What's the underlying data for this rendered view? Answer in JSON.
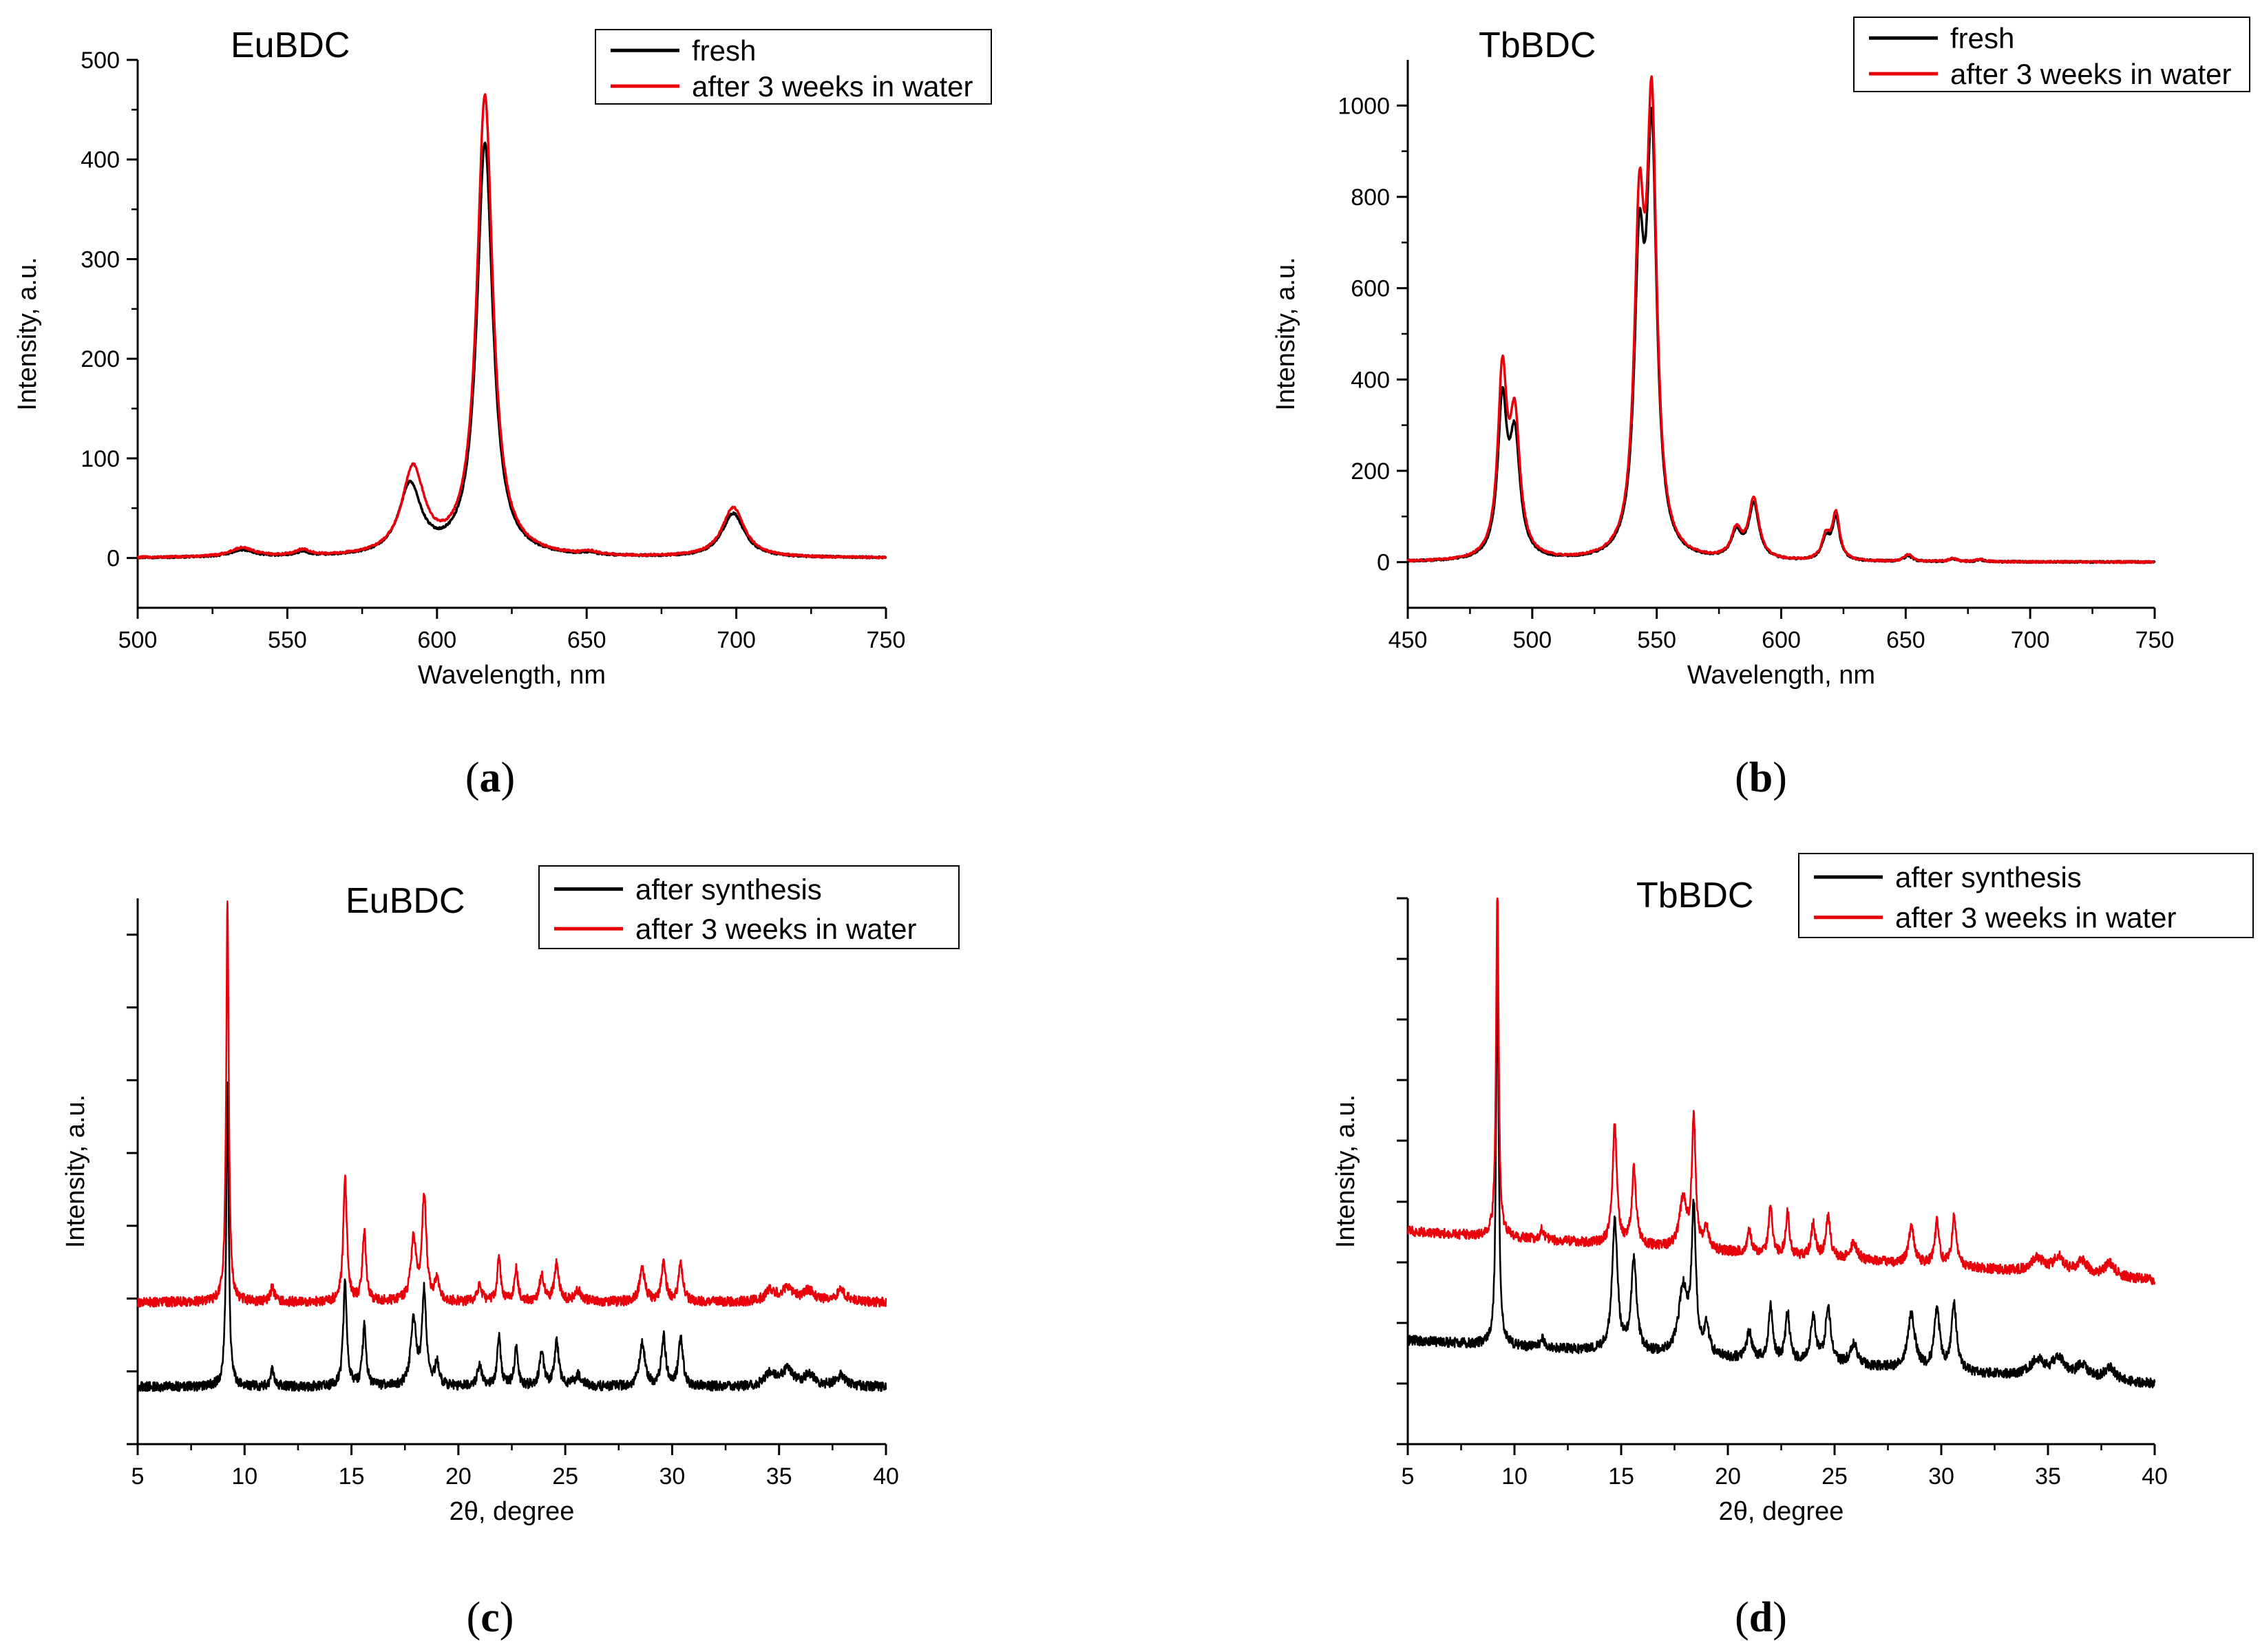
{
  "colors": {
    "black_series": "#000000",
    "red_series": "#e8000b",
    "axis": "#000000",
    "legend_border": "#000000"
  },
  "chart_data": [
    {
      "id": "a",
      "type": "line",
      "letter": "a",
      "title": "EuBDC",
      "xlabel": "Wavelength, nm",
      "ylabel": "Intensity, a.u.",
      "xlim": [
        500,
        750
      ],
      "ylim": [
        -50,
        500
      ],
      "x_ticks": [
        500,
        550,
        600,
        650,
        700,
        750
      ],
      "x_tick_labels": [
        "500",
        "550",
        "600",
        "650",
        "700",
        "750"
      ],
      "y_ticks": [
        0,
        100,
        200,
        300,
        400,
        500
      ],
      "y_tick_labels": [
        "0",
        "100",
        "200",
        "300",
        "400",
        "500"
      ],
      "legend_position": "top-right",
      "series": [
        {
          "name": "fresh",
          "color": "#000000",
          "baseline": 0,
          "noise": 1,
          "peaks": [
            [
              535,
              7,
              5
            ],
            [
              555,
              4,
              3
            ],
            [
              591,
              70,
              4.5
            ],
            [
              616,
              415,
              3.2
            ],
            [
              651,
              2,
              3
            ],
            [
              699,
              44,
              4.5
            ]
          ]
        },
        {
          "name": "after 3 weeks in water",
          "color": "#e8000b",
          "baseline": 0,
          "noise": 1,
          "peaks": [
            [
              535,
              9,
              5
            ],
            [
              555,
              6,
              3
            ],
            [
              592,
              86,
              4.5
            ],
            [
              616,
              462,
              3.2
            ],
            [
              651,
              3,
              3
            ],
            [
              699,
              50,
              4.5
            ]
          ]
        }
      ]
    },
    {
      "id": "b",
      "type": "line",
      "letter": "b",
      "title": "TbBDC",
      "xlabel": "Wavelength, nm",
      "ylabel": "Intensity, a.u.",
      "xlim": [
        450,
        750
      ],
      "ylim": [
        -100,
        1100
      ],
      "x_ticks": [
        450,
        500,
        550,
        600,
        650,
        700,
        750
      ],
      "x_tick_labels": [
        "450",
        "500",
        "550",
        "600",
        "650",
        "700",
        "750"
      ],
      "y_ticks": [
        0,
        200,
        400,
        600,
        800,
        1000
      ],
      "y_tick_labels": [
        "0",
        "200",
        "400",
        "600",
        "800",
        "1000"
      ],
      "legend_position": "top-right",
      "series": [
        {
          "name": "fresh",
          "color": "#000000",
          "baseline": 0,
          "noise": 2,
          "peaks": [
            [
              488,
              330,
              2.2
            ],
            [
              493,
              250,
              2.5
            ],
            [
              543,
              600,
              2.4
            ],
            [
              548,
              880,
              2.4
            ],
            [
              582,
              55,
              2.5
            ],
            [
              589,
              120,
              2.5
            ],
            [
              618,
              45,
              2
            ],
            [
              622,
              90,
              1.8
            ],
            [
              651,
              12,
              2
            ],
            [
              669,
              6,
              2
            ],
            [
              680,
              4,
              2
            ]
          ]
        },
        {
          "name": "after 3 weeks in water",
          "color": "#e8000b",
          "baseline": 0,
          "noise": 2,
          "peaks": [
            [
              488,
              390,
              2.2
            ],
            [
              493,
              290,
              2.5
            ],
            [
              543,
              680,
              2.4
            ],
            [
              548,
              930,
              2.4
            ],
            [
              582,
              60,
              2.5
            ],
            [
              589,
              130,
              2.5
            ],
            [
              618,
              50,
              2
            ],
            [
              622,
              100,
              1.8
            ],
            [
              651,
              15,
              2
            ],
            [
              669,
              7,
              2
            ],
            [
              680,
              5,
              2
            ]
          ]
        }
      ]
    },
    {
      "id": "c",
      "type": "line",
      "letter": "c",
      "title": "EuBDC",
      "xlabel": "2θ, degree",
      "ylabel": "Intensity, a.u.",
      "xlim": [
        5,
        40
      ],
      "ylim": [
        0,
        100
      ],
      "x_ticks": [
        5,
        10,
        15,
        20,
        25,
        30,
        35,
        40
      ],
      "x_tick_labels": [
        "5",
        "10",
        "15",
        "20",
        "25",
        "30",
        "35",
        "40"
      ],
      "y_ticks": [
        0,
        13.33,
        26.67,
        40,
        53.33,
        66.67,
        80,
        93.33
      ],
      "y_tick_labels": [
        "",
        "",
        "",
        "",
        "",
        "",
        "",
        ""
      ],
      "legend_position": "top-right",
      "series": [
        {
          "name": "after synthesis",
          "color": "#000000",
          "baseline": 10.5,
          "noise": 0.9,
          "peaks": [
            [
              9.2,
              55,
              0.07
            ],
            [
              11.3,
              3,
              0.1
            ],
            [
              14.7,
              19,
              0.1
            ],
            [
              15.6,
              11,
              0.1
            ],
            [
              17.9,
              12,
              0.15
            ],
            [
              18.4,
              17,
              0.12
            ],
            [
              19.0,
              4,
              0.12
            ],
            [
              21.0,
              4,
              0.12
            ],
            [
              21.9,
              9,
              0.1
            ],
            [
              22.7,
              7,
              0.1
            ],
            [
              23.9,
              6,
              0.12
            ],
            [
              24.6,
              8,
              0.12
            ],
            [
              25.6,
              2,
              0.2
            ],
            [
              28.6,
              8,
              0.15
            ],
            [
              29.6,
              9,
              0.12
            ],
            [
              30.4,
              9,
              0.12
            ],
            [
              34.6,
              2.5,
              0.3
            ],
            [
              35.4,
              3,
              0.3
            ],
            [
              36.4,
              2,
              0.3
            ],
            [
              37.9,
              2,
              0.3
            ]
          ]
        },
        {
          "name": "after 3 weeks in water",
          "color": "#e8000b",
          "baseline": 26,
          "noise": 0.9,
          "peaks": [
            [
              9.2,
              74,
              0.07
            ],
            [
              11.3,
              3,
              0.1
            ],
            [
              14.7,
              23,
              0.1
            ],
            [
              15.6,
              13,
              0.1
            ],
            [
              17.9,
              11,
              0.15
            ],
            [
              18.4,
              19,
              0.12
            ],
            [
              19.0,
              4,
              0.12
            ],
            [
              21.0,
              3,
              0.12
            ],
            [
              21.9,
              8,
              0.1
            ],
            [
              22.7,
              6,
              0.1
            ],
            [
              23.9,
              5,
              0.12
            ],
            [
              24.6,
              7,
              0.12
            ],
            [
              25.6,
              2,
              0.2
            ],
            [
              28.6,
              6,
              0.15
            ],
            [
              29.6,
              7,
              0.12
            ],
            [
              30.4,
              7,
              0.12
            ],
            [
              34.6,
              2,
              0.3
            ],
            [
              35.4,
              2.5,
              0.3
            ],
            [
              36.4,
              2,
              0.3
            ],
            [
              37.9,
              2,
              0.3
            ]
          ]
        }
      ]
    },
    {
      "id": "d",
      "type": "line",
      "letter": "d",
      "title": "TbBDC",
      "xlabel": "2θ, degree",
      "ylabel": "Intensity, a.u.",
      "xlim": [
        5,
        40
      ],
      "ylim": [
        0,
        100
      ],
      "x_ticks": [
        5,
        10,
        15,
        20,
        25,
        30,
        35,
        40
      ],
      "x_tick_labels": [
        "5",
        "10",
        "15",
        "20",
        "25",
        "30",
        "35",
        "40"
      ],
      "y_ticks": [
        0,
        11.1,
        22.2,
        33.3,
        44.4,
        55.6,
        66.7,
        77.8,
        88.9,
        100
      ],
      "y_tick_labels": [
        "",
        "",
        "",
        "",
        "",
        "",
        "",
        "",
        "",
        ""
      ],
      "legend_position": "top-right",
      "series": [
        {
          "name": "after synthesis",
          "color": "#000000",
          "baseline": 11,
          "noise": 0.9,
          "slope": 8,
          "peaks": [
            [
              9.2,
              72,
              0.07
            ],
            [
              11.3,
              2,
              0.1
            ],
            [
              14.7,
              24,
              0.15
            ],
            [
              15.6,
              17,
              0.15
            ],
            [
              17.9,
              12,
              0.25
            ],
            [
              18.4,
              26,
              0.12
            ],
            [
              19.0,
              5,
              0.15
            ],
            [
              21.0,
              5,
              0.15
            ],
            [
              22.0,
              10,
              0.12
            ],
            [
              22.8,
              9,
              0.12
            ],
            [
              24.0,
              8,
              0.15
            ],
            [
              24.7,
              10,
              0.15
            ],
            [
              25.9,
              4,
              0.2
            ],
            [
              28.6,
              10,
              0.2
            ],
            [
              29.8,
              11,
              0.15
            ],
            [
              30.6,
              12,
              0.15
            ],
            [
              34.5,
              3,
              0.4
            ],
            [
              35.5,
              3.5,
              0.35
            ],
            [
              36.6,
              2.5,
              0.3
            ],
            [
              37.9,
              2.5,
              0.3
            ]
          ]
        },
        {
          "name": "after 3 weeks in water",
          "color": "#e8000b",
          "baseline": 30,
          "noise": 0.9,
          "slope": 9,
          "peaks": [
            [
              9.2,
              64,
              0.07
            ],
            [
              11.3,
              2,
              0.1
            ],
            [
              14.7,
              22,
              0.12
            ],
            [
              15.6,
              14,
              0.12
            ],
            [
              17.9,
              9,
              0.2
            ],
            [
              18.4,
              24,
              0.1
            ],
            [
              19.0,
              4,
              0.12
            ],
            [
              21.0,
              4,
              0.12
            ],
            [
              22.0,
              9,
              0.1
            ],
            [
              22.8,
              8,
              0.1
            ],
            [
              24.0,
              6,
              0.12
            ],
            [
              24.7,
              8,
              0.12
            ],
            [
              25.9,
              3,
              0.2
            ],
            [
              28.6,
              7,
              0.15
            ],
            [
              29.8,
              8,
              0.12
            ],
            [
              30.6,
              9,
              0.12
            ],
            [
              34.5,
              2.5,
              0.35
            ],
            [
              35.5,
              3,
              0.3
            ],
            [
              36.6,
              2.5,
              0.3
            ],
            [
              37.9,
              2.5,
              0.3
            ]
          ]
        }
      ]
    }
  ]
}
